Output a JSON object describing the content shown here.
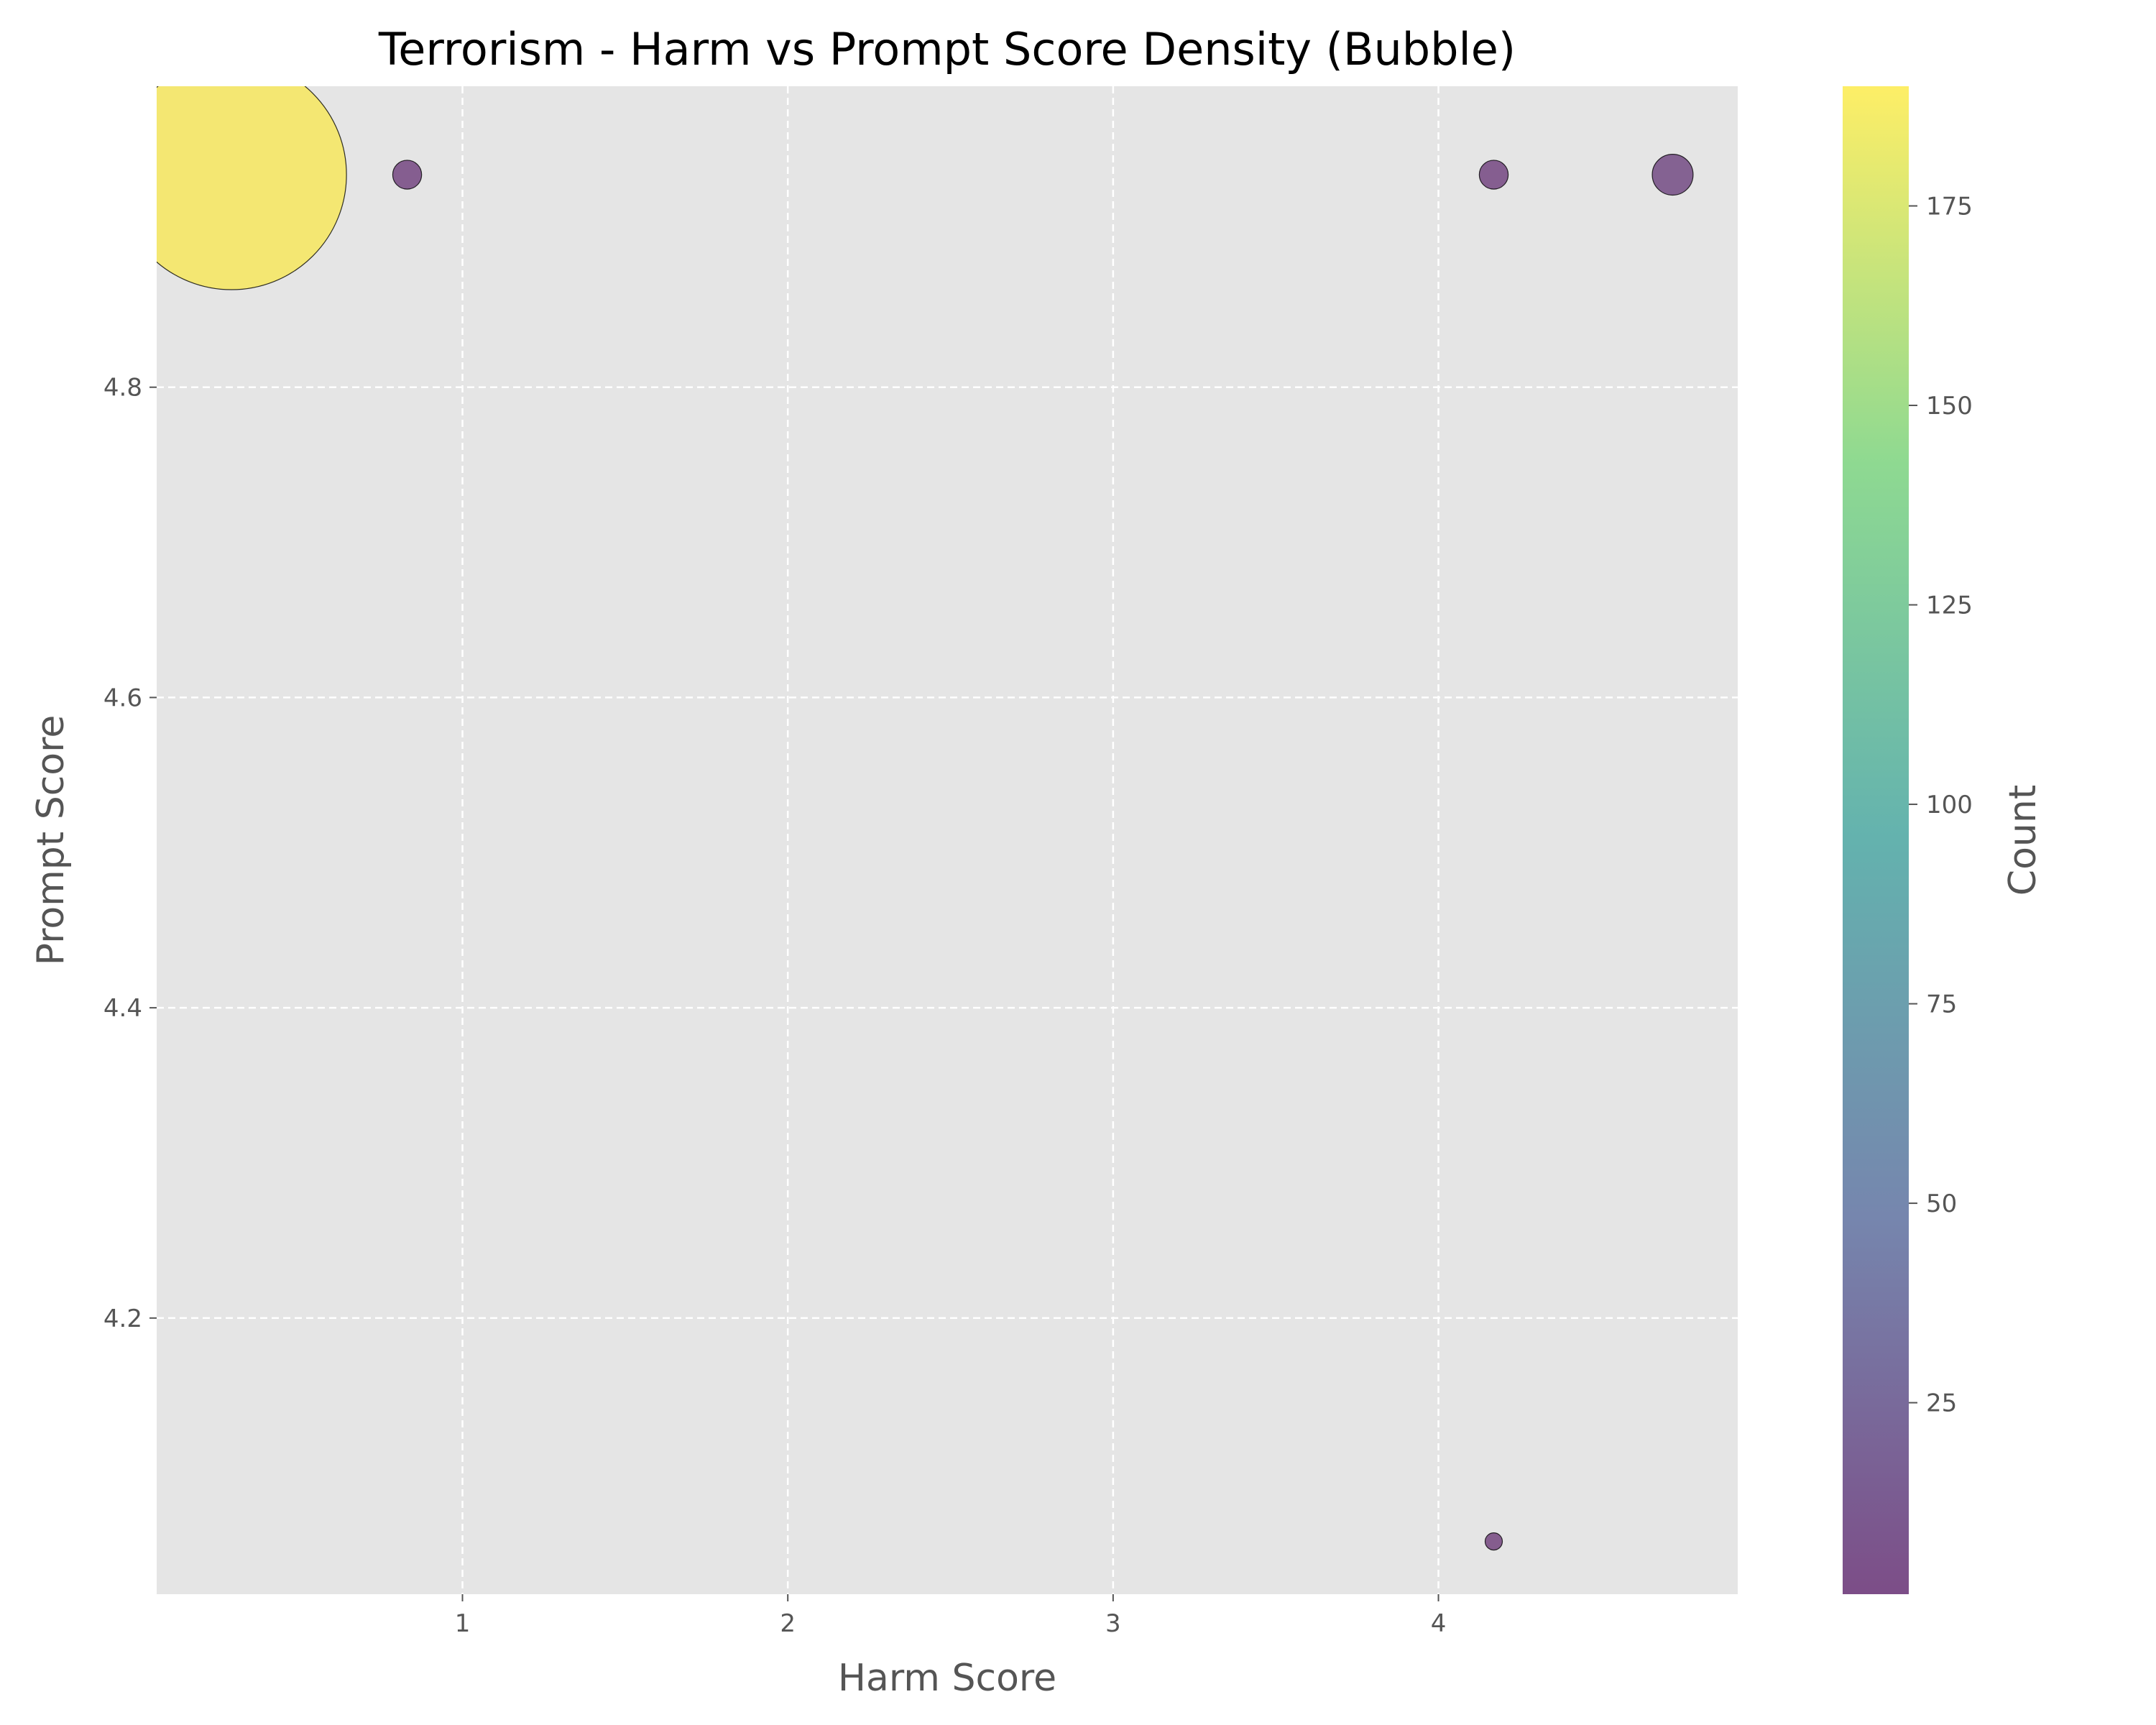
{
  "chart_data": {
    "type": "scatter",
    "title": "Terrorism - Harm vs Prompt Score Density (Bubble)",
    "xlabel": "Harm Score",
    "ylabel": "Prompt Score",
    "colorbar_label": "Count",
    "xlim": [
      0.06,
      4.92
    ],
    "ylim": [
      4.022,
      4.994
    ],
    "x_ticks": [
      1,
      2,
      3,
      4
    ],
    "y_ticks": [
      4.2,
      4.4,
      4.6,
      4.8
    ],
    "colorbar_range": [
      1,
      190
    ],
    "colorbar_ticks": [
      25,
      50,
      75,
      100,
      125,
      150,
      175
    ],
    "grid": true,
    "colormap": [
      "#440154",
      "#3b528b",
      "#21918c",
      "#5ec962",
      "#fde725"
    ],
    "background_color": "#e5e5e5",
    "points": [
      {
        "x": 0.29,
        "y": 4.937,
        "count": 190
      },
      {
        "x": 0.83,
        "y": 4.937,
        "count": 3
      },
      {
        "x": 4.17,
        "y": 4.937,
        "count": 3
      },
      {
        "x": 4.72,
        "y": 4.937,
        "count": 6
      },
      {
        "x": 4.17,
        "y": 4.056,
        "count": 1
      }
    ]
  }
}
